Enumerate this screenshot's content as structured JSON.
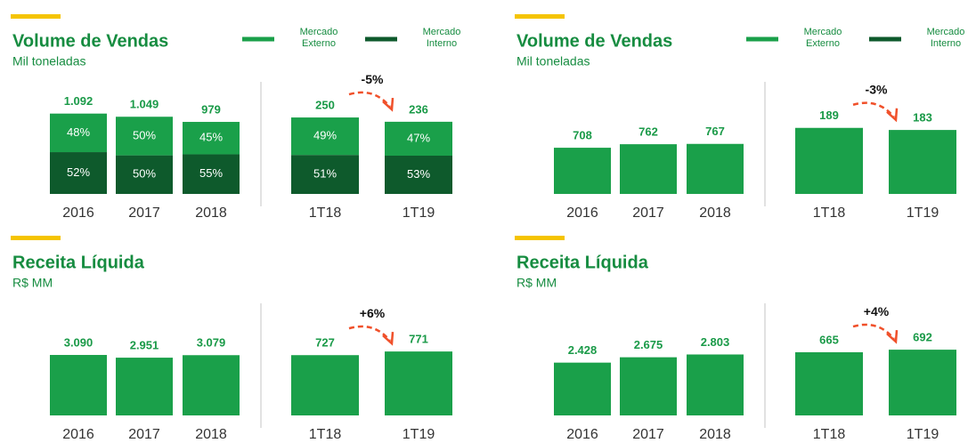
{
  "chart_data": [
    {
      "type": "bar",
      "title": "Volume de Vendas",
      "subtitle": "Mil toneladas",
      "color": "#1aa04a",
      "legend": [
        {
          "name": "Mercado Externo",
          "color": "#1aa04a"
        },
        {
          "name": "Mercado Interno",
          "color": "#0e5a2c"
        }
      ],
      "groups": [
        {
          "categories": [
            "2016",
            "2017",
            "2018"
          ],
          "values": [
            1092,
            1049,
            979
          ],
          "value_labels": [
            "1.092",
            "1.049",
            "979"
          ],
          "ylim": [
            0,
            1330
          ],
          "series": [
            {
              "values": [
                48,
                50,
                45
              ],
              "value_labels": [
                "48%",
                "50%",
                "45%"
              ]
            },
            {
              "values": [
                52,
                50,
                55
              ],
              "value_labels": [
                "52%",
                "50%",
                "55%"
              ]
            }
          ]
        },
        {
          "categories": [
            "1T18",
            "1T19"
          ],
          "values": [
            250,
            236
          ],
          "value_labels": [
            "250",
            "236"
          ],
          "ylim": [
            0,
            320
          ],
          "change": "-5%",
          "series": [
            {
              "values": [
                49,
                47
              ],
              "value_labels": [
                "49%",
                "47%"
              ]
            },
            {
              "values": [
                51,
                53
              ],
              "value_labels": [
                "51%",
                "53%"
              ]
            }
          ]
        }
      ]
    },
    {
      "type": "bar",
      "title": "Volume de Vendas",
      "subtitle": "Mil toneladas",
      "color": "#1aa04a",
      "legend": [
        {
          "name": "Mercado Externo",
          "color": "#1aa04a"
        },
        {
          "name": "Mercado Interno",
          "color": "#0e5a2c"
        }
      ],
      "groups": [
        {
          "categories": [
            "2016",
            "2017",
            "2018"
          ],
          "values": [
            708,
            762,
            767
          ],
          "ylim": [
            0,
            1500
          ]
        },
        {
          "categories": [
            "1T18",
            "1T19"
          ],
          "values": [
            189,
            183
          ],
          "ylim": [
            0,
            280
          ],
          "change": "-3%"
        }
      ]
    },
    {
      "type": "bar",
      "title": "Receita Líquida",
      "subtitle": "R$ MM",
      "color": "#1aa04a",
      "groups": [
        {
          "categories": [
            "2016",
            "2017",
            "2018"
          ],
          "values": [
            3090,
            2951,
            3079
          ],
          "value_labels": [
            "3.090",
            "2.951",
            "3.079"
          ],
          "ylim": [
            0,
            5000
          ]
        },
        {
          "categories": [
            "1T18",
            "1T19"
          ],
          "values": [
            727,
            771
          ],
          "ylim": [
            0,
            1180
          ],
          "change": "+6%"
        }
      ]
    },
    {
      "type": "bar",
      "title": "Receita Líquida",
      "subtitle": "R$ MM",
      "color": "#1aa04a",
      "groups": [
        {
          "categories": [
            "2016",
            "2017",
            "2018"
          ],
          "values": [
            2428,
            2675,
            2803
          ],
          "value_labels": [
            "2.428",
            "2.675",
            "2.803"
          ],
          "ylim": [
            0,
            4500
          ]
        },
        {
          "categories": [
            "1T18",
            "1T19"
          ],
          "values": [
            665,
            692
          ],
          "ylim": [
            0,
            1030
          ],
          "change": "+4%"
        }
      ]
    }
  ]
}
